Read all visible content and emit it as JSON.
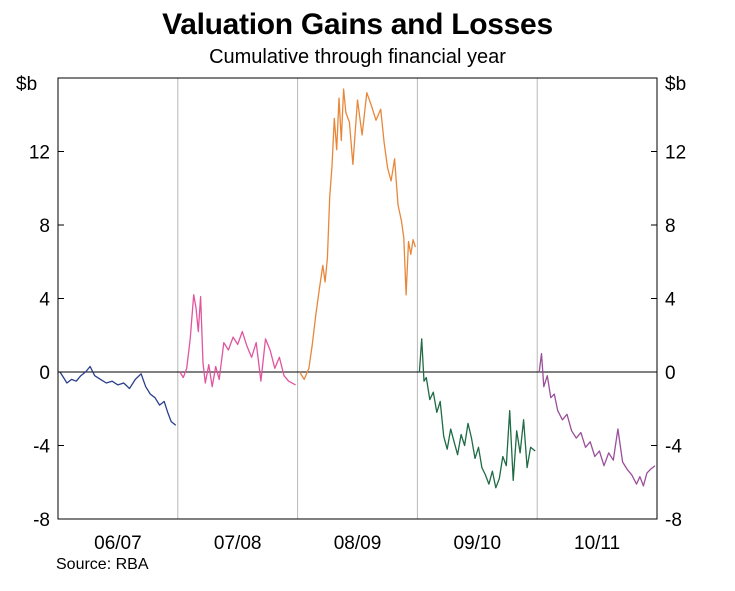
{
  "chart_data": {
    "type": "line",
    "title": "Valuation Gains and Losses",
    "subtitle": "Cumulative through financial year",
    "ylabel_left": "$b",
    "ylabel_right": "$b",
    "ylim": [
      -8,
      16
    ],
    "yticks": [
      "12",
      "8",
      "4",
      "0",
      "-4",
      "-8"
    ],
    "ytick_values": [
      12,
      8,
      4,
      0,
      -4,
      -8
    ],
    "categories": [
      "06/07",
      "07/08",
      "08/09",
      "09/10",
      "10/11"
    ],
    "source": "Source: RBA",
    "series": [
      {
        "name": "06/07",
        "color": "#2b3f8c",
        "x": [
          0,
          0.03,
          0.06,
          0.1,
          0.14,
          0.18,
          0.22,
          0.26,
          0.3,
          0.35,
          0.4,
          0.45,
          0.5,
          0.55,
          0.6,
          0.65,
          0.7,
          0.74,
          0.78,
          0.82,
          0.86,
          0.9,
          0.93,
          0.96,
          1.0
        ],
        "values": [
          0.0,
          -0.3,
          -0.6,
          -0.4,
          -0.5,
          -0.2,
          0.0,
          0.3,
          -0.2,
          -0.4,
          -0.6,
          -0.5,
          -0.7,
          -0.6,
          -0.9,
          -0.4,
          -0.1,
          -0.8,
          -1.2,
          -1.4,
          -1.8,
          -1.6,
          -2.2,
          -2.7,
          -2.9
        ]
      },
      {
        "name": "07/08",
        "color": "#e0559e",
        "x": [
          0,
          0.03,
          0.06,
          0.09,
          0.12,
          0.14,
          0.16,
          0.18,
          0.2,
          0.22,
          0.25,
          0.28,
          0.31,
          0.34,
          0.38,
          0.42,
          0.46,
          0.5,
          0.54,
          0.58,
          0.62,
          0.66,
          0.7,
          0.74,
          0.78,
          0.82,
          0.86,
          0.9,
          0.94,
          1.0
        ],
        "values": [
          0.0,
          -0.3,
          0.2,
          1.8,
          4.2,
          3.5,
          2.2,
          4.1,
          0.5,
          -0.6,
          0.4,
          -0.8,
          0.3,
          -0.4,
          1.6,
          1.2,
          1.9,
          1.5,
          2.2,
          1.4,
          0.8,
          1.6,
          -0.5,
          1.8,
          1.2,
          0.2,
          0.8,
          -0.2,
          -0.5,
          -0.7
        ]
      },
      {
        "name": "08/09",
        "color": "#e8873a",
        "x": [
          0,
          0.04,
          0.08,
          0.11,
          0.14,
          0.17,
          0.2,
          0.22,
          0.24,
          0.26,
          0.28,
          0.3,
          0.32,
          0.34,
          0.36,
          0.38,
          0.4,
          0.43,
          0.46,
          0.5,
          0.54,
          0.58,
          0.62,
          0.66,
          0.7,
          0.73,
          0.76,
          0.79,
          0.82,
          0.85,
          0.88,
          0.9,
          0.92,
          0.94,
          0.96,
          0.98,
          1.0
        ],
        "values": [
          0.0,
          -0.4,
          0.2,
          1.5,
          3.1,
          4.5,
          5.8,
          4.9,
          6.2,
          9.5,
          11.2,
          13.8,
          12.1,
          14.9,
          12.6,
          15.4,
          14.1,
          13.6,
          11.3,
          14.8,
          12.9,
          15.2,
          14.5,
          13.7,
          14.3,
          12.5,
          11.1,
          10.4,
          11.6,
          9.1,
          8.2,
          7.3,
          4.2,
          7.1,
          6.4,
          7.2,
          6.8
        ]
      },
      {
        "name": "09/10",
        "color": "#1e6b45",
        "x": [
          0,
          0.02,
          0.04,
          0.06,
          0.09,
          0.12,
          0.15,
          0.18,
          0.21,
          0.24,
          0.27,
          0.3,
          0.33,
          0.36,
          0.39,
          0.42,
          0.45,
          0.48,
          0.51,
          0.54,
          0.57,
          0.6,
          0.63,
          0.66,
          0.69,
          0.72,
          0.75,
          0.78,
          0.81,
          0.84,
          0.87,
          0.9,
          0.93,
          0.96,
          1.0
        ],
        "values": [
          0.0,
          1.8,
          -0.5,
          -0.3,
          -1.5,
          -1.1,
          -2.2,
          -1.6,
          -3.5,
          -4.2,
          -3.1,
          -3.8,
          -4.5,
          -3.4,
          -4.0,
          -2.8,
          -3.6,
          -4.7,
          -4.1,
          -5.2,
          -5.6,
          -6.1,
          -5.4,
          -6.3,
          -5.8,
          -4.6,
          -5.1,
          -2.1,
          -5.9,
          -3.2,
          -4.4,
          -2.6,
          -5.2,
          -4.1,
          -4.3
        ]
      },
      {
        "name": "10/11",
        "color": "#9a4f9a",
        "x": [
          0,
          0.02,
          0.04,
          0.07,
          0.1,
          0.13,
          0.16,
          0.2,
          0.24,
          0.28,
          0.32,
          0.36,
          0.4,
          0.44,
          0.48,
          0.52,
          0.56,
          0.6,
          0.64,
          0.68,
          0.72,
          0.76,
          0.8,
          0.84,
          0.87,
          0.9,
          0.93,
          0.96,
          1.0
        ],
        "values": [
          0.0,
          1.0,
          -0.8,
          -0.2,
          -1.4,
          -1.2,
          -2.1,
          -2.6,
          -2.3,
          -3.2,
          -3.6,
          -3.3,
          -4.1,
          -3.8,
          -4.6,
          -4.3,
          -5.1,
          -4.4,
          -4.8,
          -3.1,
          -4.9,
          -5.3,
          -5.6,
          -6.1,
          -5.7,
          -6.2,
          -5.5,
          -5.3,
          -5.1
        ]
      }
    ]
  }
}
